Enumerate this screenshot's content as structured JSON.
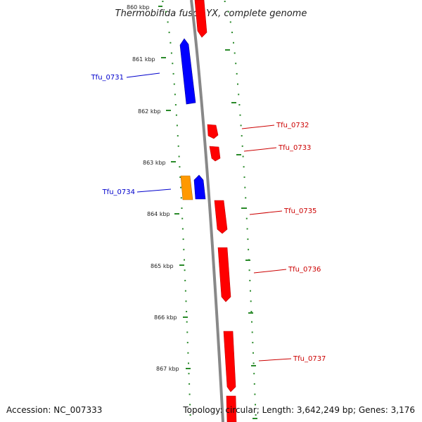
{
  "title": "Thermobifida fusca YX, complete genome",
  "accession_text": "Accession: NC_007333",
  "topology_text": "Topology: circular; Length: 3,642,249 bp; Genes: 3,176",
  "colors": {
    "forward_gene": "#ff0000",
    "reverse_gene": "#0000ff",
    "highlight_gene": "#ff9900",
    "backbone": "#888888",
    "tick": "#2a8a2a",
    "label_forward": "#cc0000",
    "label_reverse": "#0000cc"
  },
  "kbp_labels": [
    "860 kbp",
    "861 kbp",
    "862 kbp",
    "863 kbp",
    "864 kbp",
    "865 kbp",
    "866 kbp",
    "867 kbp"
  ],
  "genes": [
    {
      "label": "",
      "strand": "forward"
    },
    {
      "label": "Tfu_0731",
      "strand": "reverse"
    },
    {
      "label": "Tfu_0732",
      "strand": "forward"
    },
    {
      "label": "Tfu_0733",
      "strand": "forward"
    },
    {
      "label": "",
      "strand": "highlight"
    },
    {
      "label": "Tfu_0734",
      "strand": "reverse"
    },
    {
      "label": "Tfu_0735",
      "strand": "forward"
    },
    {
      "label": "Tfu_0736",
      "strand": "forward"
    },
    {
      "label": "Tfu_0737",
      "strand": "forward"
    },
    {
      "label": "",
      "strand": "forward"
    }
  ]
}
